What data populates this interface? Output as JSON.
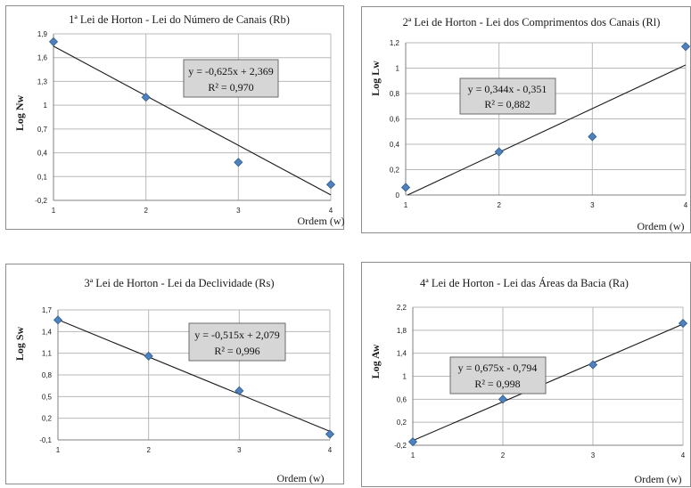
{
  "colors": {
    "marker": "#4f81bd",
    "marker_stroke": "#2e5b8f",
    "trendline": "#1a1a1a",
    "grid": "#b8b8b8",
    "axis": "#808080",
    "equation_box_fill": "#d6d6d6",
    "equation_box_stroke": "#6b6b6b"
  },
  "chart_data": [
    {
      "type": "scatter",
      "title": "1ª Lei de Horton - Lei do Número de Canais (Rb)",
      "xlabel": "Ordem (w)",
      "ylabel": "Log Nw",
      "x_ticks": [
        "1",
        "2",
        "3",
        "4"
      ],
      "y_ticks": [
        "1,9",
        "1,6",
        "1,3",
        "1",
        "0,7",
        "0,4",
        "0,1",
        "-0,2"
      ],
      "xlim": [
        1,
        4
      ],
      "ylim": [
        -0.2,
        1.9
      ],
      "grid": true,
      "marker": "diamond",
      "series": [
        {
          "x": [
            1,
            2,
            3,
            4
          ],
          "y": [
            1.8,
            1.1,
            0.28,
            0.0
          ]
        }
      ],
      "trendline": {
        "slope": -0.625,
        "intercept": 2.369,
        "equation": "y = -0,625x + 2,369",
        "r2": "R² = 0,970"
      }
    },
    {
      "type": "scatter",
      "title": "2ª Lei de Horton - Lei dos Comprimentos dos Canais (Rl)",
      "xlabel": "Ordem (w)",
      "ylabel": "Log Lw",
      "x_ticks": [
        "1",
        "2",
        "3",
        "4"
      ],
      "y_ticks": [
        "1,2",
        "1",
        "0,8",
        "0,6",
        "0,4",
        "0,2",
        "0"
      ],
      "xlim": [
        1,
        4
      ],
      "ylim": [
        0,
        1.2
      ],
      "grid": true,
      "marker": "diamond",
      "series": [
        {
          "x": [
            1,
            2,
            3,
            4
          ],
          "y": [
            0.06,
            0.34,
            0.46,
            1.17
          ]
        }
      ],
      "trendline": {
        "slope": 0.344,
        "intercept": -0.351,
        "equation": "y = 0,344x - 0,351",
        "r2": "R² = 0,882"
      }
    },
    {
      "type": "scatter",
      "title": "3ª Lei de Horton - Lei da Declividade (Rs)",
      "xlabel": "Ordem (w)",
      "ylabel": "Log Sw",
      "x_ticks": [
        "1",
        "2",
        "3",
        "4"
      ],
      "y_ticks": [
        "1,7",
        "1,4",
        "1,1",
        "0,8",
        "0,5",
        "0,2",
        "-0,1"
      ],
      "xlim": [
        1,
        4
      ],
      "ylim": [
        -0.1,
        1.7
      ],
      "grid": true,
      "marker": "diamond",
      "series": [
        {
          "x": [
            1,
            2,
            3,
            4
          ],
          "y": [
            1.56,
            1.06,
            0.58,
            -0.02
          ]
        }
      ],
      "trendline": {
        "slope": -0.515,
        "intercept": 2.079,
        "equation": "y = -0,515x + 2,079",
        "r2": "R² = 0,996"
      }
    },
    {
      "type": "scatter",
      "title": "4ª Lei de Horton - Lei das Áreas da Bacia (Ra)",
      "xlabel": "Ordem (w)",
      "ylabel": "Log Aw",
      "x_ticks": [
        "1",
        "2",
        "3",
        "4"
      ],
      "y_ticks": [
        "2,2",
        "1,8",
        "1,4",
        "1",
        "0,6",
        "0,2",
        "-0,2"
      ],
      "xlim": [
        1,
        4
      ],
      "ylim": [
        -0.2,
        2.2
      ],
      "grid": true,
      "marker": "diamond",
      "series": [
        {
          "x": [
            1,
            2,
            3,
            4
          ],
          "y": [
            -0.14,
            0.6,
            1.2,
            1.92
          ]
        }
      ],
      "trendline": {
        "slope": 0.675,
        "intercept": -0.794,
        "equation": "y = 0,675x - 0,794",
        "r2": "R² = 0,998"
      }
    }
  ]
}
